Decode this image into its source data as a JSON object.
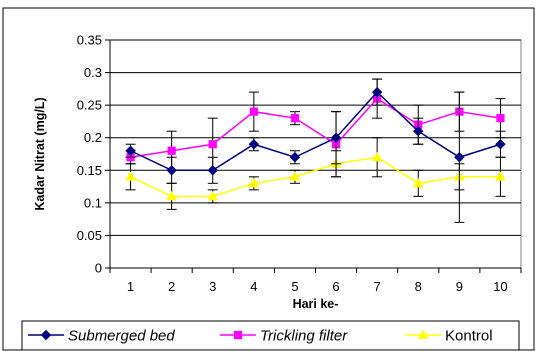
{
  "chart_data": {
    "type": "line",
    "title": "",
    "xlabel": "Hari ke-",
    "ylabel": "Kadar Nitrat (mg/L)",
    "categories": [
      "1",
      "2",
      "3",
      "4",
      "5",
      "6",
      "7",
      "8",
      "9",
      "10"
    ],
    "ylim": [
      0,
      0.35
    ],
    "yticks": [
      "0",
      "0.05",
      "0.1",
      "0.15",
      "0.2",
      "0.25",
      "0.3",
      "0.35"
    ],
    "grid": true,
    "legend_position": "bottom",
    "series": [
      {
        "name": "Submerged bed",
        "color": "#000080",
        "marker": "diamond",
        "italic": true,
        "values": [
          0.18,
          0.15,
          0.15,
          0.19,
          0.17,
          0.2,
          0.27,
          0.21,
          0.17,
          0.19
        ],
        "error": [
          0.01,
          0.02,
          0.02,
          0.01,
          0.01,
          0.04,
          0.02,
          0.02,
          0.1,
          0.02
        ]
      },
      {
        "name": "Trickling filter",
        "color": "#FF00FF",
        "marker": "square",
        "italic": true,
        "values": [
          0.17,
          0.18,
          0.19,
          0.24,
          0.23,
          0.19,
          0.26,
          0.22,
          0.24,
          0.23
        ],
        "error": [
          0.01,
          0.03,
          0.04,
          0.03,
          0.01,
          0.05,
          0.03,
          0.03,
          0.03,
          0.03
        ]
      },
      {
        "name": "Kontrol",
        "color": "#FFFF00",
        "marker": "triangle",
        "italic": false,
        "values": [
          0.14,
          0.11,
          0.11,
          0.13,
          0.14,
          0.16,
          0.17,
          0.13,
          0.14,
          0.14
        ],
        "error": [
          0.02,
          0.02,
          0.01,
          0.01,
          0.01,
          0.02,
          0.03,
          0.02,
          0.02,
          0.03
        ]
      }
    ]
  }
}
